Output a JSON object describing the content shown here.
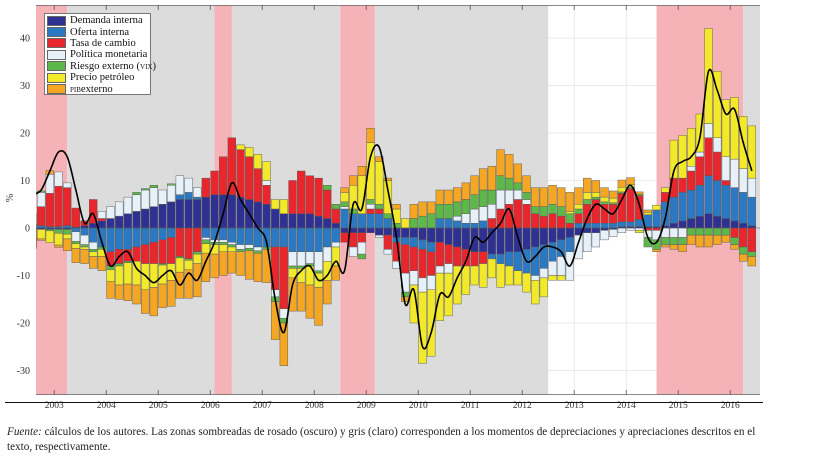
{
  "chart_data": {
    "type": "bar",
    "stacked": true,
    "ylabel": "%",
    "ylim": [
      -35,
      47
    ],
    "yticks": [
      40,
      30,
      20,
      10,
      0,
      -10,
      -20,
      -30
    ],
    "xlim": [
      "2003-02",
      "2017-01"
    ],
    "xtick_labels": [
      "2003",
      "2004",
      "2005",
      "2006",
      "2007",
      "2008",
      "2009",
      "2010",
      "2011",
      "2012",
      "2013",
      "2014",
      "2015",
      "2016"
    ],
    "grid": true,
    "legend_position": "top-left",
    "x": [
      "2003-02",
      "2003-04",
      "2003-06",
      "2003-08",
      "2003-10",
      "2003-12",
      "2004-02",
      "2004-04",
      "2004-06",
      "2004-08",
      "2004-10",
      "2004-12",
      "2005-02",
      "2005-04",
      "2005-06",
      "2005-08",
      "2005-10",
      "2005-12",
      "2006-02",
      "2006-04",
      "2006-06",
      "2006-08",
      "2006-10",
      "2006-12",
      "2007-02",
      "2007-04",
      "2007-06",
      "2007-08",
      "2007-10",
      "2007-12",
      "2008-02",
      "2008-04",
      "2008-06",
      "2008-08",
      "2008-10",
      "2008-12",
      "2009-02",
      "2009-04",
      "2009-06",
      "2009-08",
      "2009-10",
      "2009-12",
      "2010-02",
      "2010-04",
      "2010-06",
      "2010-08",
      "2010-10",
      "2010-12",
      "2011-02",
      "2011-04",
      "2011-06",
      "2011-08",
      "2011-10",
      "2011-12",
      "2012-02",
      "2012-04",
      "2012-06",
      "2012-08",
      "2012-10",
      "2012-12",
      "2013-02",
      "2013-04",
      "2013-06",
      "2013-08",
      "2013-10",
      "2013-12",
      "2014-02",
      "2014-04",
      "2014-06",
      "2014-08",
      "2014-10",
      "2014-12",
      "2015-02",
      "2015-04",
      "2015-06",
      "2015-08",
      "2015-10",
      "2015-12",
      "2016-02",
      "2016-04",
      "2016-06",
      "2016-08",
      "2016-10",
      "2016-12"
    ],
    "series": [
      {
        "name": "Demanda interna",
        "color": "#2e3192",
        "values": [
          -0.3,
          -0.3,
          -0.3,
          -0.3,
          -0.3,
          0.2,
          0.5,
          1,
          1.5,
          2,
          2.5,
          3,
          3.5,
          4,
          4.5,
          5,
          5.5,
          6,
          6,
          6,
          6.5,
          7,
          7,
          7,
          6.5,
          6,
          5.5,
          5,
          4,
          3,
          3,
          3,
          3,
          2.5,
          2,
          1,
          -1,
          -1,
          -1,
          -1,
          -1.5,
          -1.5,
          -2,
          -2,
          -2,
          -2.5,
          -3,
          -3,
          -3.5,
          -4,
          -4.5,
          -5,
          -5,
          -5.5,
          -5.5,
          -5,
          -5,
          -4.5,
          -4,
          -3.5,
          -3,
          -2.5,
          -2,
          -1.5,
          -1,
          -1,
          -0.5,
          -0.3,
          0.3,
          0.3,
          0.3,
          0.3,
          0.3,
          0.5,
          1,
          1.5,
          2,
          2.5,
          3,
          2.5,
          2,
          1.5,
          1,
          0.5
        ]
      },
      {
        "name": "Oferta interna",
        "color": "#2b78c3",
        "values": [
          0.8,
          0.5,
          0.3,
          0.3,
          0.5,
          -0.8,
          -1.5,
          -3,
          -4,
          -5,
          -4.5,
          -4.5,
          -4,
          -3.5,
          -3,
          -2.5,
          -2,
          1,
          1.5,
          0.5,
          -2,
          -2.5,
          -2.5,
          -3,
          -3.5,
          -3.5,
          -4,
          -4,
          -4,
          -4,
          -5,
          -5,
          -5,
          -5,
          -4,
          -3,
          4,
          3,
          3,
          3,
          3,
          2,
          -1,
          -1.5,
          -2,
          -2,
          -2,
          2,
          2,
          1.5,
          1,
          1,
          1.5,
          -1,
          -2,
          -3,
          -4,
          -5,
          -6,
          -5,
          -4,
          -3.5,
          -3,
          1,
          1,
          1,
          1,
          1,
          1,
          1,
          1.5,
          2.5,
          3.5,
          5,
          5.5,
          6,
          6,
          6.5,
          8,
          7.5,
          7,
          7,
          6.5,
          6
        ]
      },
      {
        "name": "Tasa de cambio",
        "color": "#e8262b",
        "values": [
          -3.5,
          4,
          7,
          8.5,
          8,
          4,
          1,
          5,
          0.5,
          -3,
          -3,
          -2.5,
          -3,
          -4,
          -4.5,
          -5,
          -5.5,
          -6,
          -6.5,
          -5,
          4,
          5,
          8,
          12,
          10,
          9,
          7,
          4,
          -9,
          -13,
          7,
          9,
          8,
          8,
          6,
          3,
          -2,
          -3,
          -2,
          1,
          1,
          -3,
          -4,
          -6,
          -5,
          -6,
          -5,
          -5,
          -4,
          -4,
          -3.5,
          -3,
          -2.5,
          2,
          4,
          5,
          6,
          5,
          3,
          2.5,
          3,
          2.5,
          1,
          2,
          4,
          5,
          4,
          4,
          6,
          7,
          5,
          -0.5,
          -0.5,
          2,
          4,
          3,
          4,
          6,
          8,
          6,
          1,
          -2,
          -4,
          -5
        ]
      },
      {
        "name": "Política monetaria",
        "color": "#e6f1fa",
        "values": [
          2.2,
          3,
          4,
          3,
          1,
          -2,
          -2,
          -1.5,
          1.5,
          2.5,
          3,
          3.5,
          3.5,
          4,
          4,
          3,
          3.5,
          4,
          3,
          2,
          -0.5,
          -0.5,
          -0.5,
          -0.5,
          -1,
          -0.8,
          -0.8,
          1,
          -1.5,
          -2,
          -3,
          -3,
          -2.5,
          -4,
          -3,
          -1,
          0.5,
          -2,
          -2.5,
          1,
          -0.5,
          -1,
          -1.5,
          -4,
          -3,
          -3,
          -3,
          -1.5,
          -2,
          1,
          2,
          3,
          3,
          3,
          4,
          3,
          2,
          1,
          -1,
          -2,
          -3,
          -4,
          -6,
          -5,
          -4,
          -3,
          -2,
          -1.5,
          -1,
          -0.5,
          -0.5,
          -1.5,
          -2,
          -2,
          -2,
          -2,
          1,
          1,
          3,
          3,
          5,
          6,
          5,
          4
        ]
      },
      {
        "name": "Riesgo externo (VIX)",
        "color": "#5db84a",
        "values": [
          0,
          0.3,
          -0.3,
          -0.8,
          -1,
          -0.5,
          -0.5,
          -0.5,
          -0.5,
          -0.8,
          -0.5,
          -0.3,
          0.5,
          0.3,
          0.5,
          -0.3,
          0.3,
          -0.3,
          -0.3,
          -0.5,
          -0.8,
          -0.5,
          -0.5,
          -0.5,
          -0.5,
          -0.5,
          -0.5,
          -0.5,
          -1,
          -1,
          -0.5,
          -0.5,
          -0.5,
          -0.5,
          1,
          1,
          1,
          1,
          -1,
          1,
          1,
          1,
          1,
          -1,
          2,
          2.5,
          3,
          3,
          3,
          3,
          3,
          3,
          3.5,
          3,
          3,
          2.5,
          1.5,
          1.5,
          1.5,
          2,
          2,
          2,
          2,
          1,
          1,
          0.5,
          0.5,
          0.3,
          0.3,
          0.3,
          0.3,
          -2,
          -2,
          -1.5,
          -1.5,
          -1.5,
          -1.5,
          -1.5,
          -1.5,
          -1.5,
          -1.5,
          -1.5,
          -1.5,
          -1
        ]
      },
      {
        "name": "Precio petróleo",
        "color": "#f2e92a",
        "values": [
          0,
          -2,
          -2.5,
          -2.5,
          -1,
          -1,
          -0.5,
          -1,
          -1.5,
          -2.5,
          -4,
          -4.5,
          -5,
          -5.5,
          -5,
          -4,
          -3.5,
          -3,
          -2,
          -2,
          -2,
          -2,
          -1.5,
          -1,
          1,
          2,
          3,
          4,
          2,
          3,
          -2,
          -3,
          -4,
          -3,
          -4,
          -4,
          2,
          5,
          8,
          12,
          9,
          7,
          3,
          2,
          -8,
          -15,
          -14,
          -10,
          -9,
          -8,
          -6,
          -4,
          -5,
          -4,
          -5,
          -4,
          -3,
          -4,
          -5,
          -4,
          -1,
          -1,
          0.5,
          1,
          1.5,
          1,
          1,
          1,
          1,
          0.5,
          -0.5,
          0.5,
          1,
          1,
          8,
          9,
          8,
          8,
          20,
          14,
          12,
          13,
          11,
          11
        ]
      },
      {
        "name": "PIB externo",
        "color": "#f5a623",
        "values": [
          -0.5,
          -0.3,
          0.8,
          -0.5,
          -2.5,
          -3,
          -3,
          -2.5,
          -3,
          -3.5,
          -3,
          -3.5,
          -4,
          -5,
          -6,
          -5,
          -5.5,
          -5.5,
          -6,
          -7,
          -6,
          -5,
          -5,
          -4.5,
          -5,
          -6,
          -6,
          -7,
          -8,
          -9,
          -7,
          -6,
          -7,
          -8,
          -5,
          -3,
          1,
          2,
          2,
          3,
          1,
          0.5,
          1,
          -1,
          3,
          3,
          2.5,
          3,
          3,
          3,
          3.5,
          4,
          4.5,
          5,
          5.5,
          5,
          4,
          3.5,
          4,
          4,
          4,
          4,
          4,
          3.5,
          3,
          2.5,
          2,
          1.5,
          1.5,
          1.5,
          0.5,
          0.5,
          -0.5,
          -0.5,
          -1,
          -1.5,
          -2,
          -2.5,
          -2.5,
          -2,
          -1.5,
          -1,
          -1.5,
          -2
        ]
      }
    ],
    "total_line": {
      "color": "#000000",
      "values": [
        7,
        8,
        12,
        16,
        15,
        8,
        1,
        3,
        -3,
        -8,
        -6,
        -5,
        -8.5,
        -10,
        -11.5,
        -10,
        -9,
        -12,
        -9.5,
        -11,
        -7,
        -3,
        3,
        9.5,
        6,
        3,
        0,
        -3,
        -15,
        -22,
        -12,
        -9,
        -8,
        -11,
        -10,
        -7,
        -9,
        5,
        4,
        15,
        17,
        8,
        -2,
        -16,
        -13,
        -25,
        -22,
        -14,
        -14.5,
        -10.5,
        -7,
        -2,
        -3,
        -1,
        1,
        4,
        -2,
        -7,
        -6,
        -4,
        -4,
        -5,
        -8,
        -3,
        2,
        5,
        4,
        3,
        6,
        9,
        5,
        -2,
        -3,
        2,
        12,
        14,
        15,
        19,
        33,
        29,
        24,
        25,
        18,
        12
      ]
    },
    "shaded_periods": {
      "depreciation_pink": {
        "color": "#f5b3b7",
        "ranges": [
          [
            "2003-01",
            "2003-10"
          ],
          [
            "2006-08",
            "2006-12"
          ],
          [
            "2009-01",
            "2009-09"
          ],
          [
            "2015-02",
            "2016-10"
          ]
        ]
      },
      "appreciation_gray": {
        "color": "#dcdcdc",
        "ranges": [
          [
            "2003-10",
            "2006-08"
          ],
          [
            "2006-12",
            "2009-01"
          ],
          [
            "2009-09",
            "2013-01"
          ],
          [
            "2016-10",
            "2017-02"
          ]
        ]
      }
    }
  },
  "legend": {
    "items": [
      {
        "label": "Demanda interna",
        "color": "#2e3192"
      },
      {
        "label": "Oferta interna",
        "color": "#2b78c3"
      },
      {
        "label": "Tasa de cambio",
        "color": "#e8262b"
      },
      {
        "label": "Política monetaria",
        "color": "#e6f1fa"
      },
      {
        "label_main": "Riesgo externo (",
        "label_sc": "vix",
        "label_end": ")",
        "color": "#5db84a"
      },
      {
        "label": "Precio petróleo",
        "color": "#f2e92a"
      },
      {
        "label_sc": "pib",
        "label_main": " externo",
        "color": "#f5a623"
      }
    ]
  },
  "caption": {
    "source_label": "Fuente:",
    "text": " cálculos de los autores. Las zonas sombreadas de rosado (oscuro) y gris (claro) corresponden a los momentos de depreciaciones y apreciaciones descritos en el texto, respectivamente."
  }
}
